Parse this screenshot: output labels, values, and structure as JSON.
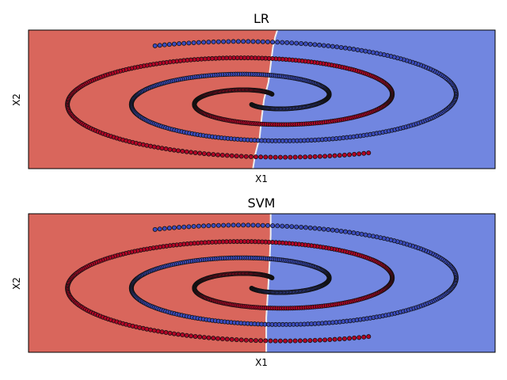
{
  "chart_data": [
    {
      "type": "scatter",
      "title": "LR",
      "xlabel": "X1",
      "ylabel": "X2",
      "xticks": [],
      "yticks": [],
      "xlim": [
        -1.05,
        1.05
      ],
      "ylim": [
        -1.0,
        1.0
      ],
      "grid": false,
      "legend": "none",
      "background": "decision-regions",
      "boundary": {
        "x": [
          -0.04,
          -0.03,
          -0.01,
          0.0,
          0.01,
          0.03,
          0.04,
          0.05,
          0.06,
          0.07
        ],
        "y": [
          -1.0,
          -0.8,
          -0.55,
          -0.25,
          0.0,
          0.25,
          0.5,
          0.75,
          0.9,
          1.0
        ]
      },
      "region_colors": {
        "left": "#d9665c",
        "right": "#7186e0"
      },
      "series": [
        {
          "class": 0,
          "color": "#b40426",
          "spiral": "red"
        },
        {
          "class": 1,
          "color": "#3b4cc0",
          "spiral": "blue"
        }
      ]
    },
    {
      "type": "scatter",
      "title": "SVM",
      "xlabel": "X1",
      "ylabel": "X2",
      "xticks": [],
      "yticks": [],
      "xlim": [
        -1.05,
        1.05
      ],
      "ylim": [
        -1.0,
        1.0
      ],
      "grid": false,
      "legend": "none",
      "background": "decision-regions",
      "boundary": {
        "x": [
          0.02,
          0.02,
          0.03,
          0.035,
          0.04,
          0.04
        ],
        "y": [
          -1.0,
          -0.5,
          0.0,
          0.3,
          0.7,
          1.0
        ]
      },
      "region_colors": {
        "left": "#d9665c",
        "right": "#7186e0"
      },
      "series": [
        {
          "class": 0,
          "color": "#b40426",
          "spiral": "red"
        },
        {
          "class": 1,
          "color": "#3b4cc0",
          "spiral": "blue"
        }
      ]
    }
  ]
}
